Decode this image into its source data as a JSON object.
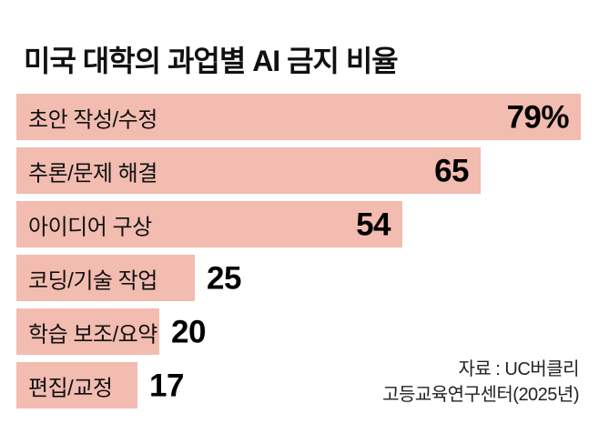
{
  "title": "미국 대학의 과업별 AI 금지 비율",
  "source": {
    "line1": "자료 : UC버클리",
    "line2": "고등교육연구센터(2025년)"
  },
  "colors": {
    "bar": "#f2bcb0",
    "title_text": "#111111",
    "value_text": "#000000",
    "background": "#ffffff"
  },
  "chart_data": {
    "type": "bar",
    "orientation": "horizontal",
    "title": "미국 대학의 과업별 AI 금지 비율",
    "unit": "%",
    "categories": [
      "초안 작성/수정",
      "추론/문제 해결",
      "아이디어 구상",
      "코딩/기술 작업",
      "학습 보조/요약",
      "편집/교정"
    ],
    "values": [
      79,
      65,
      54,
      25,
      20,
      17
    ],
    "value_labels": [
      "79%",
      "65",
      "54",
      "25",
      "20",
      "17"
    ],
    "value_inside": [
      true,
      true,
      true,
      false,
      false,
      false
    ],
    "xlim": [
      0,
      79
    ],
    "grid": false,
    "legend": false,
    "source_note": "자료 : UC버클리 고등교육연구센터(2025년)"
  }
}
